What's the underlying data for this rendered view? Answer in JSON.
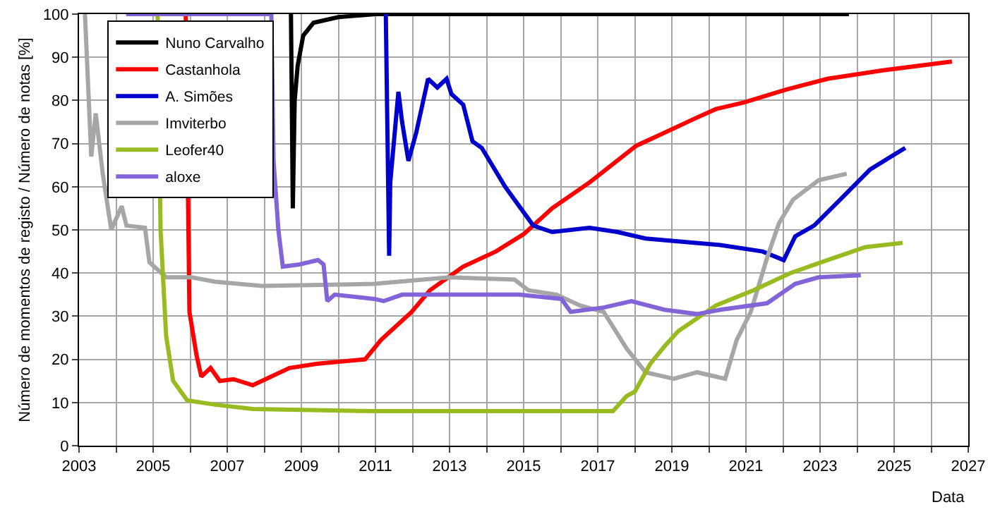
{
  "chart_data": {
    "type": "line",
    "xlabel": "Data",
    "ylabel": "Número de momentos de registo / Número de notas [%]",
    "xlim": [
      2003,
      2027
    ],
    "xticks": [
      2003,
      {
        "value": 2004,
        "label": null
      },
      2005,
      {
        "value": 2006,
        "label": null
      },
      2007,
      {
        "value": 2008,
        "label": null
      },
      2009,
      {
        "value": 2010,
        "label": null
      },
      2011,
      {
        "value": 2012,
        "label": null
      },
      2013,
      {
        "value": 2014,
        "label": null
      },
      2015,
      {
        "value": 2016,
        "label": null
      },
      2017,
      {
        "value": 2018,
        "label": null
      },
      2019,
      {
        "value": 2020,
        "label": null
      },
      2021,
      {
        "value": 2022,
        "label": null
      },
      2023,
      {
        "value": 2024,
        "label": null
      },
      2025,
      {
        "value": 2026,
        "label": null
      },
      2027
    ],
    "ylim": [
      0,
      100
    ],
    "yticks": [
      0,
      10,
      20,
      30,
      40,
      50,
      60,
      70,
      80,
      90,
      100
    ],
    "grid": true,
    "legend": "top left",
    "marker": "none",
    "line_style": "solid",
    "series": [
      {
        "name": "Nuno Carvalho",
        "color": "#000000",
        "x": [
          2008.72,
          2008.77,
          2008.82,
          2008.9,
          2009.05,
          2009.33,
          2010.0,
          2011.0,
          2023.78
        ],
        "values": [
          100,
          55,
          80,
          88,
          95,
          98,
          99.3,
          100,
          100
        ]
      },
      {
        "name": "Castanhola",
        "color": "#ff0000",
        "x": [
          2005.88,
          2005.98,
          2006.17,
          2006.3,
          2006.55,
          2006.8,
          2007.17,
          2007.69,
          2008.68,
          2009.44,
          2010.72,
          2011.15,
          2011.98,
          2012.47,
          2013.37,
          2014.25,
          2015.0,
          2015.77,
          2016.78,
          2018.04,
          2018.8,
          2019.67,
          2020.19,
          2020.94,
          2022.08,
          2023.2,
          2024.73,
          2026.56
        ],
        "values": [
          100,
          31,
          21,
          16,
          18,
          15,
          15.4,
          14,
          18,
          19,
          20,
          24.5,
          31,
          36,
          41.5,
          45,
          49,
          55,
          61,
          69.5,
          72.5,
          76,
          78,
          79.5,
          82.5,
          85,
          87,
          89
        ]
      },
      {
        "name": "A. Simões",
        "color": "#0000cc",
        "x": [
          2011.28,
          2011.37,
          2011.4,
          2011.62,
          2011.72,
          2011.89,
          2012.1,
          2012.42,
          2012.67,
          2012.92,
          2013.05,
          2013.37,
          2013.62,
          2013.87,
          2014.5,
          2015.26,
          2015.77,
          2016.78,
          2017.53,
          2018.29,
          2020.31,
          2021.45,
          2022.02,
          2022.33,
          2022.84,
          2023.6,
          2024.35,
          2025.3
        ],
        "values": [
          100,
          44,
          61,
          82,
          75,
          66,
          72.5,
          85,
          83,
          85,
          81.5,
          79,
          70.5,
          69,
          60,
          51,
          49.5,
          50.5,
          49.5,
          48,
          46.5,
          45,
          43,
          48.5,
          51,
          57.5,
          64,
          69
        ]
      },
      {
        "name": "Imviterbo",
        "color": "#a6a6a6",
        "x": [
          2003.16,
          2003.33,
          2003.45,
          2003.64,
          2003.87,
          2004.15,
          2004.28,
          2004.78,
          2004.9,
          2005.35,
          2006.04,
          2006.67,
          2007.94,
          2010.97,
          2012.99,
          2014.75,
          2015.13,
          2015.89,
          2016.52,
          2017.16,
          2017.78,
          2018.29,
          2018.8,
          2019.05,
          2019.68,
          2020.44,
          2020.75,
          2021.13,
          2021.57,
          2021.89,
          2022.27,
          2022.96,
          2023.72
        ],
        "values": [
          100,
          67,
          77,
          63,
          50,
          55.5,
          51,
          50.5,
          42.5,
          39,
          39,
          38,
          37,
          37.5,
          39,
          38.5,
          36,
          35,
          32.5,
          31,
          22.5,
          17,
          16,
          15.5,
          17,
          15.5,
          24.5,
          31,
          43.5,
          51.5,
          57,
          61.5,
          63
        ]
      },
      {
        "name": "Leofer40",
        "color": "#99bb22",
        "x": [
          2005.12,
          2005.2,
          2005.35,
          2005.54,
          2005.92,
          2006.67,
          2007.69,
          2010.96,
          2017.41,
          2017.78,
          2018.0,
          2018.42,
          2018.8,
          2019.17,
          2020.19,
          2021.2,
          2022.2,
          2023.2,
          2024.22,
          2025.23
        ],
        "values": [
          100,
          50,
          25.5,
          15,
          10.5,
          9.5,
          8.5,
          8,
          8,
          11.5,
          12.5,
          19,
          23,
          26.5,
          32.5,
          36,
          40,
          43,
          46,
          47
        ]
      },
      {
        "name": "aloxe",
        "color": "#8064d8",
        "x": [
          2004.27,
          2008.19,
          2008.25,
          2008.38,
          2008.5,
          2008.95,
          2009.45,
          2009.6,
          2009.7,
          2009.9,
          2010.97,
          2011.22,
          2011.72,
          2014.88,
          2016.02,
          2016.27,
          2017.16,
          2017.91,
          2018.8,
          2019.68,
          2020.31,
          2021.57,
          2022.33,
          2022.96,
          2024.1
        ],
        "values": [
          100,
          100,
          66,
          50,
          41.5,
          42,
          43,
          42,
          33.5,
          35,
          34,
          33.5,
          35,
          35,
          34,
          31,
          32,
          33.5,
          31.5,
          30.5,
          31.5,
          33,
          37.5,
          39,
          39.5
        ]
      }
    ]
  }
}
